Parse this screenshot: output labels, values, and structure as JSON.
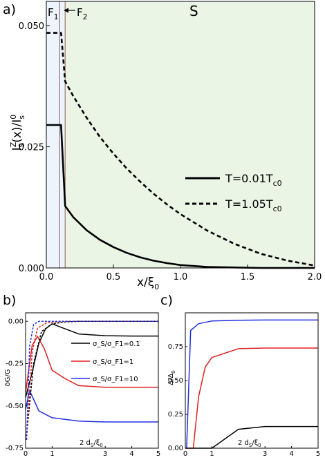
{
  "chart_data": [
    {
      "panel": "a)",
      "type": "line",
      "region_labels": {
        "f1": "F",
        "f1_sub": "1",
        "f2": "F",
        "f2_sub": "2",
        "s": "S"
      },
      "xlim": [
        0,
        2.0
      ],
      "ylim": [
        0,
        0.055
      ],
      "x_ticks": [
        "0.0",
        "0.5",
        "1.0",
        "1.5",
        "2.0"
      ],
      "y_ticks": [
        "0.000",
        "0.025",
        "0.050"
      ],
      "xlabel": {
        "main": "x/ξ",
        "sub": "0"
      },
      "ylabel": {
        "i": "I",
        "sup_z": "Z",
        "sub_s": "S",
        "mid": "(x)/I",
        "sup_0": "0",
        "sub_s2": "s"
      },
      "region_bounds": {
        "f1_end": 0.1,
        "f2_end": 0.14
      },
      "colors": {
        "s_region": "#eaf5e6",
        "f_region": "#eef4fc",
        "boundary": "#8a5a5a"
      },
      "series": [
        {
          "name": "T=0.01T",
          "name_sub": "c0",
          "dash": "solid",
          "points": [
            [
              0,
              0.0295
            ],
            [
              0.11,
              0.0295
            ],
            [
              0.14,
              0.0128
            ],
            [
              0.2,
              0.0105
            ],
            [
              0.3,
              0.0078
            ],
            [
              0.4,
              0.0058
            ],
            [
              0.5,
              0.0043
            ],
            [
              0.6,
              0.0031
            ],
            [
              0.7,
              0.0022
            ],
            [
              0.8,
              0.0015
            ],
            [
              0.9,
              0.001
            ],
            [
              1.0,
              0.0006
            ],
            [
              1.2,
              0.0002
            ],
            [
              1.4,
              0.0001
            ],
            [
              1.6,
              0.0
            ],
            [
              1.8,
              0.0
            ],
            [
              2.0,
              0.0
            ]
          ]
        },
        {
          "name": "T=1.05T",
          "name_sub": "c0",
          "dash": "dashed",
          "points": [
            [
              0,
              0.0485
            ],
            [
              0.11,
              0.0485
            ],
            [
              0.14,
              0.0385
            ],
            [
              0.2,
              0.0355
            ],
            [
              0.3,
              0.031
            ],
            [
              0.4,
              0.027
            ],
            [
              0.5,
              0.0236
            ],
            [
              0.6,
              0.0205
            ],
            [
              0.7,
              0.0178
            ],
            [
              0.8,
              0.0153
            ],
            [
              0.9,
              0.0131
            ],
            [
              1.0,
              0.0111
            ],
            [
              1.2,
              0.0077
            ],
            [
              1.4,
              0.005
            ],
            [
              1.6,
              0.0029
            ],
            [
              1.8,
              0.0015
            ],
            [
              2.0,
              0.0005
            ]
          ]
        }
      ]
    },
    {
      "panel": "b)",
      "type": "line",
      "xlim": [
        0,
        5
      ],
      "ylim": [
        -0.75,
        0.05
      ],
      "x_ticks": [
        "0",
        "1",
        "3",
        "4",
        "5"
      ],
      "y_ticks": [
        "0.00",
        "-0.25",
        "-0.50",
        "-0.75"
      ],
      "xlabel": {
        "main": "2 d",
        "sub1": "S",
        "mid": "/ξ",
        "sub2": "0"
      },
      "ylabel": "δG/G",
      "series": [
        {
          "name": "σ_S/σ_F1=0.1",
          "color": "#000000",
          "dash": "solid",
          "points": [
            [
              0,
              -0.45
            ],
            [
              0.25,
              -0.3
            ],
            [
              0.5,
              -0.13
            ],
            [
              0.75,
              -0.045
            ],
            [
              1,
              -0.015
            ],
            [
              1.5,
              -0.045
            ],
            [
              2,
              -0.075
            ],
            [
              3,
              -0.085
            ],
            [
              4,
              -0.087
            ],
            [
              5,
              -0.087
            ]
          ]
        },
        {
          "name": "σ_S/σ_F1=1",
          "color": "#e02020",
          "dash": "solid",
          "points": [
            [
              0,
              -0.42
            ],
            [
              0.25,
              -0.14
            ],
            [
              0.45,
              -0.09
            ],
            [
              0.7,
              -0.16
            ],
            [
              1,
              -0.29
            ],
            [
              1.5,
              -0.34
            ],
            [
              2,
              -0.38
            ],
            [
              3,
              -0.39
            ],
            [
              5,
              -0.39
            ]
          ]
        },
        {
          "name": "σ_S/σ_F1=10",
          "color": "#2030e0",
          "dash": "solid",
          "points": [
            [
              0,
              -0.52
            ],
            [
              0.15,
              -0.41
            ],
            [
              0.3,
              -0.46
            ],
            [
              0.5,
              -0.53
            ],
            [
              1,
              -0.57
            ],
            [
              2,
              -0.59
            ],
            [
              3,
              -0.595
            ],
            [
              5,
              -0.595
            ]
          ]
        },
        {
          "name": "",
          "color": "#000000",
          "dash": "dashed",
          "points": [
            [
              0.02,
              -0.7
            ],
            [
              0.3,
              -0.25
            ],
            [
              0.6,
              -0.06
            ],
            [
              1,
              -0.015
            ],
            [
              1.5,
              -0.004
            ],
            [
              2,
              0.0
            ],
            [
              5,
              0.0
            ]
          ]
        },
        {
          "name": "",
          "color": "#e02020",
          "dash": "dashed",
          "points": [
            [
              0.03,
              -0.7
            ],
            [
              0.25,
              -0.18
            ],
            [
              0.45,
              -0.04
            ],
            [
              0.8,
              -0.008
            ],
            [
              1.5,
              0.0
            ],
            [
              5,
              0.0
            ]
          ]
        },
        {
          "name": "",
          "color": "#2030e0",
          "dash": "dashed",
          "points": [
            [
              0.04,
              -0.7
            ],
            [
              0.15,
              -0.15
            ],
            [
              0.3,
              -0.02
            ],
            [
              0.5,
              0.0
            ],
            [
              5,
              0.0
            ]
          ]
        }
      ]
    },
    {
      "panel": "c)",
      "type": "line",
      "xlim": [
        0,
        5
      ],
      "ylim": [
        0,
        1.0
      ],
      "x_ticks": [
        "0",
        "1",
        "3",
        "4",
        "5"
      ],
      "y_ticks": [
        "0.00",
        "0.25",
        "0.50",
        "0.75"
      ],
      "xlabel": {
        "main": "2 d",
        "sub1": "S",
        "mid": "/ξ",
        "sub2": "0"
      },
      "ylabel": {
        "main": "Δ/Δ",
        "sub": "0"
      },
      "series": [
        {
          "name": "",
          "color": "#000000",
          "dash": "solid",
          "points": [
            [
              0,
              0
            ],
            [
              1,
              0
            ],
            [
              2,
              0.14
            ],
            [
              3,
              0.16
            ],
            [
              4,
              0.16
            ],
            [
              5,
              0.16
            ]
          ]
        },
        {
          "name": "",
          "color": "#e02020",
          "dash": "solid",
          "points": [
            [
              0,
              0
            ],
            [
              0.3,
              0
            ],
            [
              0.5,
              0.38
            ],
            [
              0.75,
              0.6
            ],
            [
              1,
              0.67
            ],
            [
              2,
              0.735
            ],
            [
              3,
              0.74
            ],
            [
              5,
              0.74
            ]
          ]
        },
        {
          "name": "",
          "color": "#2030e0",
          "dash": "solid",
          "points": [
            [
              0.05,
              0
            ],
            [
              0.2,
              0.87
            ],
            [
              0.5,
              0.92
            ],
            [
              1,
              0.94
            ],
            [
              2,
              0.945
            ],
            [
              3,
              0.947
            ],
            [
              5,
              0.947
            ]
          ]
        }
      ]
    }
  ]
}
